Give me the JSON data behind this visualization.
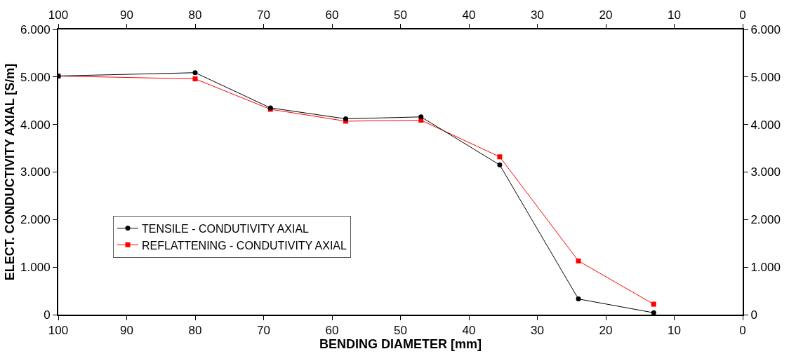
{
  "chart_data": {
    "type": "line",
    "xlabel": "BENDING DIAMETER [mm]",
    "ylabel": "ELECT. CONDUCTIVITY AXIAL [S/m]",
    "x": [
      100,
      80,
      69,
      58,
      47,
      35.5,
      24,
      13
    ],
    "series": [
      {
        "name": "TENSILE - CONDUTIVITY AXIAL",
        "color": "#000000",
        "marker": "circle",
        "values": [
          5020,
          5090,
          4350,
          4120,
          4160,
          3150,
          330,
          40
        ]
      },
      {
        "name": "REFLATTENING - CONDUTIVITY AXIAL",
        "color": "#ff0000",
        "marker": "square",
        "values": [
          5020,
          4960,
          4320,
          4070,
          4090,
          3320,
          1130,
          220
        ]
      }
    ],
    "xlim": [
      100,
      0
    ],
    "xticks": [
      100,
      90,
      80,
      70,
      60,
      50,
      40,
      30,
      20,
      10,
      0
    ],
    "x2lim": [
      100,
      0
    ],
    "x2ticks": [
      100,
      90,
      80,
      70,
      60,
      50,
      40,
      30,
      20,
      10,
      0
    ],
    "ylim": [
      0,
      6000
    ],
    "yticks": [
      0,
      {
        "value": 1000,
        "label": "1.000"
      },
      {
        "value": 2000,
        "label": "2.000"
      },
      {
        "value": 3000,
        "label": "3.000"
      },
      {
        "value": 4000,
        "label": "4.000"
      },
      {
        "value": 5000,
        "label": "5.000"
      },
      {
        "value": 6000,
        "label": "6.000"
      }
    ],
    "y2lim": [
      0,
      6000
    ],
    "y2ticks": [
      0,
      {
        "value": 1000,
        "label": "1.000"
      },
      {
        "value": 2000,
        "label": "2.000"
      },
      {
        "value": 3000,
        "label": "3.000"
      },
      {
        "value": 4000,
        "label": "4.000"
      },
      {
        "value": 5000,
        "label": "5.000"
      },
      {
        "value": 6000,
        "label": "6.000"
      }
    ],
    "legend": "bottom left",
    "line_style": "solid"
  }
}
